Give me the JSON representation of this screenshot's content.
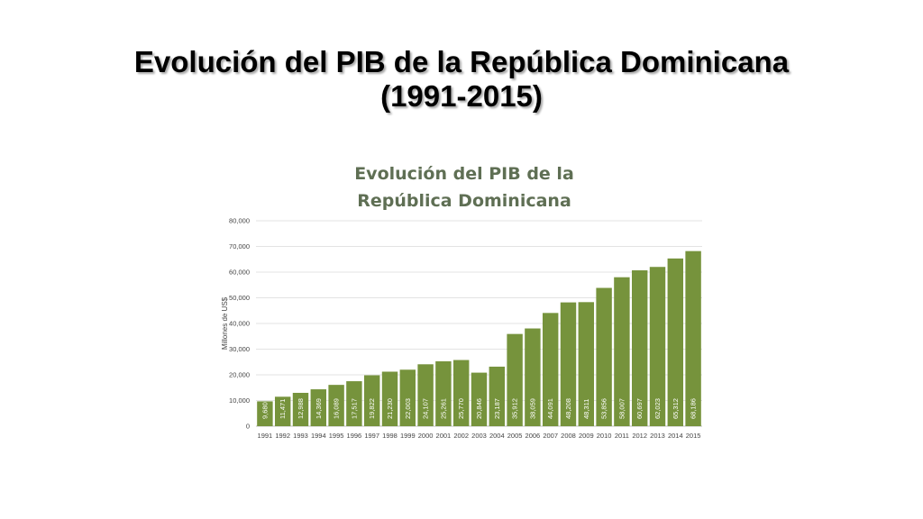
{
  "slide": {
    "title_line1": "Evolución del PIB de la República Dominicana",
    "title_line2": "(1991-2015)"
  },
  "chart_data": {
    "type": "bar",
    "title_line1": "Evolución del PIB de la",
    "title_line2": "República Dominicana",
    "ylabel": "Millones de US$",
    "xlabel": "",
    "ylim": [
      0,
      80000
    ],
    "yticks": [
      "0",
      "10,000",
      "20,000",
      "30,000",
      "40,000",
      "50,000",
      "60,000",
      "70,000",
      "80,000"
    ],
    "grid": true,
    "bar_color": "#76933c",
    "categories": [
      "1991",
      "1992",
      "1993",
      "1994",
      "1995",
      "1996",
      "1997",
      "1998",
      "1999",
      "2000",
      "2001",
      "2002",
      "2003",
      "2004",
      "2005",
      "2006",
      "2007",
      "2008",
      "2009",
      "2010",
      "2011",
      "2012",
      "2013",
      "2014",
      "2015"
    ],
    "values": [
      9680,
      11471,
      12988,
      14369,
      16089,
      17517,
      19822,
      21230,
      22003,
      24107,
      25261,
      25770,
      20846,
      23187,
      35912,
      38059,
      44091,
      48208,
      48311,
      53856,
      58007,
      60697,
      62023,
      65312,
      68186
    ],
    "labels": [
      "9,680",
      "11,471",
      "12,988",
      "14,369",
      "16,089",
      "17,517",
      "19,822",
      "21,230",
      "22,003",
      "24,107",
      "25,261",
      "25,770",
      "20,846",
      "23,187",
      "35,912",
      "38,059",
      "44,091",
      "48,208",
      "48,311",
      "53,856",
      "58,007",
      "60,697",
      "62,023",
      "65,312",
      "68,186"
    ]
  }
}
